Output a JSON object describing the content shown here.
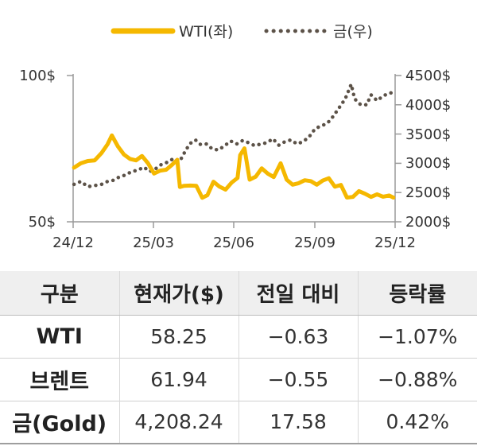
{
  "chart_data": {
    "type": "line",
    "legend": {
      "position": "top-center"
    },
    "x_ticks": [
      "24/12",
      "25/03",
      "25/06",
      "25/09",
      "25/12"
    ],
    "y_left": {
      "ticks": [
        "100$",
        "50$"
      ],
      "range": [
        50,
        100
      ]
    },
    "y_right": {
      "ticks": [
        "4500$",
        "4000$",
        "3500$",
        "3000$",
        "2500$",
        "2000$"
      ],
      "range": [
        2000,
        4500
      ]
    },
    "series": [
      {
        "name": "WTI(좌)",
        "axis": "left",
        "style": "solid",
        "color": "#F5B800",
        "points": [
          [
            "24/12/02",
            68.5
          ],
          [
            "24/12/10",
            70.0
          ],
          [
            "24/12/18",
            70.8
          ],
          [
            "24/12/26",
            71.0
          ],
          [
            "25/01/03",
            73.5
          ],
          [
            "25/01/10",
            76.5
          ],
          [
            "25/01/15",
            79.5
          ],
          [
            "25/01/22",
            75.8
          ],
          [
            "25/01/29",
            73.0
          ],
          [
            "25/02/05",
            71.5
          ],
          [
            "25/02/12",
            71.0
          ],
          [
            "25/02/19",
            72.5
          ],
          [
            "25/02/26",
            70.0
          ],
          [
            "25/03/05",
            66.5
          ],
          [
            "25/03/12",
            67.5
          ],
          [
            "25/03/19",
            67.8
          ],
          [
            "25/03/26",
            69.5
          ],
          [
            "25/04/01",
            71.2
          ],
          [
            "25/04/04",
            61.9
          ],
          [
            "25/04/09",
            62.3
          ],
          [
            "25/04/16",
            62.4
          ],
          [
            "25/04/23",
            62.3
          ],
          [
            "25/04/30",
            58.2
          ],
          [
            "25/05/06",
            59.1
          ],
          [
            "25/05/13",
            63.7
          ],
          [
            "25/05/20",
            62.0
          ],
          [
            "25/05/27",
            61.0
          ],
          [
            "25/06/03",
            63.4
          ],
          [
            "25/06/10",
            65.0
          ],
          [
            "25/06/13",
            72.8
          ],
          [
            "25/06/18",
            75.1
          ],
          [
            "25/06/24",
            64.4
          ],
          [
            "25/07/01",
            65.4
          ],
          [
            "25/07/08",
            68.3
          ],
          [
            "25/07/15",
            66.5
          ],
          [
            "25/07/22",
            65.3
          ],
          [
            "25/07/30",
            70.0
          ],
          [
            "25/08/06",
            64.4
          ],
          [
            "25/08/13",
            62.7
          ],
          [
            "25/08/20",
            63.2
          ],
          [
            "25/08/27",
            64.2
          ],
          [
            "25/09/03",
            63.9
          ],
          [
            "25/09/10",
            62.7
          ],
          [
            "25/09/17",
            64.1
          ],
          [
            "25/09/24",
            64.9
          ],
          [
            "25/10/01",
            62.0
          ],
          [
            "25/10/08",
            62.6
          ],
          [
            "25/10/15",
            58.3
          ],
          [
            "25/10/22",
            58.5
          ],
          [
            "25/10/29",
            60.5
          ],
          [
            "25/11/05",
            59.6
          ],
          [
            "25/11/12",
            58.5
          ],
          [
            "25/11/19",
            59.4
          ],
          [
            "25/11/26",
            58.6
          ],
          [
            "25/12/03",
            59.0
          ],
          [
            "25/12/08",
            58.3
          ]
        ]
      },
      {
        "name": "금(우)",
        "axis": "right",
        "style": "dotted",
        "color": "#5C5248",
        "points": [
          [
            "24/12/02",
            2640
          ],
          [
            "24/12/10",
            2690
          ],
          [
            "24/12/18",
            2600
          ],
          [
            "24/12/26",
            2620
          ],
          [
            "25/01/03",
            2640
          ],
          [
            "25/01/10",
            2690
          ],
          [
            "25/01/17",
            2710
          ],
          [
            "25/01/24",
            2770
          ],
          [
            "25/01/31",
            2800
          ],
          [
            "25/02/07",
            2860
          ],
          [
            "25/02/14",
            2880
          ],
          [
            "25/02/21",
            2935
          ],
          [
            "25/02/28",
            2860
          ],
          [
            "25/03/07",
            2910
          ],
          [
            "25/03/14",
            2985
          ],
          [
            "25/03/21",
            3020
          ],
          [
            "25/03/28",
            3085
          ],
          [
            "25/04/04",
            3040
          ],
          [
            "25/04/11",
            3230
          ],
          [
            "25/04/16",
            3340
          ],
          [
            "25/04/22",
            3400
          ],
          [
            "25/04/28",
            3320
          ],
          [
            "25/05/05",
            3330
          ],
          [
            "25/05/12",
            3240
          ],
          [
            "25/05/19",
            3230
          ],
          [
            "25/05/26",
            3300
          ],
          [
            "25/06/02",
            3380
          ],
          [
            "25/06/09",
            3330
          ],
          [
            "25/06/16",
            3390
          ],
          [
            "25/06/23",
            3350
          ],
          [
            "25/06/30",
            3300
          ],
          [
            "25/07/07",
            3330
          ],
          [
            "25/07/14",
            3350
          ],
          [
            "25/07/21",
            3420
          ],
          [
            "25/07/28",
            3310
          ],
          [
            "25/08/04",
            3370
          ],
          [
            "25/08/11",
            3400
          ],
          [
            "25/08/18",
            3330
          ],
          [
            "25/08/25",
            3370
          ],
          [
            "25/09/01",
            3450
          ],
          [
            "25/09/08",
            3590
          ],
          [
            "25/09/15",
            3640
          ],
          [
            "25/09/22",
            3680
          ],
          [
            "25/09/29",
            3800
          ],
          [
            "25/10/06",
            3950
          ],
          [
            "25/10/13",
            4100
          ],
          [
            "25/10/20",
            4350
          ],
          [
            "25/10/24",
            4100
          ],
          [
            "25/10/31",
            4000
          ],
          [
            "25/11/07",
            4000
          ],
          [
            "25/11/12",
            4170
          ],
          [
            "25/11/19",
            4070
          ],
          [
            "25/11/26",
            4150
          ],
          [
            "25/12/03",
            4200
          ],
          [
            "25/12/08",
            4208
          ]
        ]
      }
    ]
  },
  "table": {
    "headers": [
      "구분",
      "현재가($)",
      "전일 대비",
      "등락률"
    ],
    "rows": [
      [
        "WTI",
        "58.25",
        "−0.63",
        "−1.07%"
      ],
      [
        "브렌트",
        "61.94",
        "−0.55",
        "−0.88%"
      ],
      [
        "금(Gold)",
        "4,208.24",
        "17.58",
        "0.42%"
      ]
    ]
  }
}
